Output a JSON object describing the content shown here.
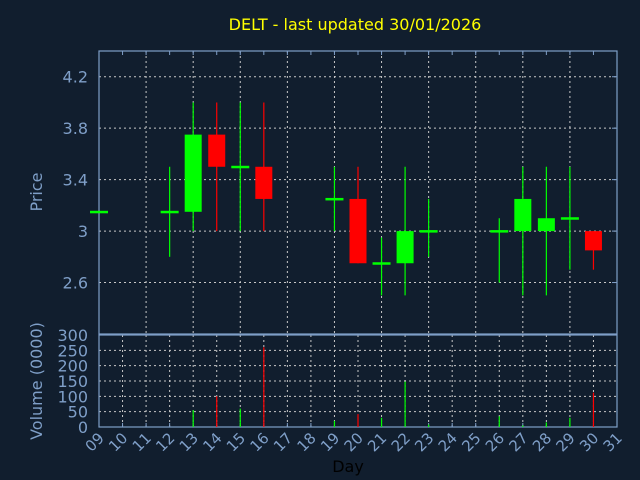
{
  "chart_data": [
    {
      "type": "candlestick",
      "title": "DELT - last updated 30/01/2026",
      "ylabel": "Price",
      "ylim": [
        2.2,
        4.4
      ],
      "yticks": [
        "2.6",
        "3",
        "3.4",
        "3.8",
        "4.2"
      ],
      "grid": true,
      "colors": {
        "up": "#00ff00",
        "down": "#ff0000",
        "title": "#ffff00",
        "axis": "#7f9fc8",
        "grid": "#c8c8c8",
        "background": "#111e2e"
      },
      "candles": [
        {
          "day": "09",
          "open": 3.15,
          "high": 3.15,
          "low": 3.15,
          "close": 3.15
        },
        {
          "day": "12",
          "open": 3.15,
          "high": 3.5,
          "low": 2.8,
          "close": 3.15
        },
        {
          "day": "13",
          "open": 3.15,
          "high": 4.0,
          "low": 3.0,
          "close": 3.75
        },
        {
          "day": "14",
          "open": 3.75,
          "high": 4.0,
          "low": 3.0,
          "close": 3.5
        },
        {
          "day": "15",
          "open": 3.5,
          "high": 4.0,
          "low": 3.0,
          "close": 3.5
        },
        {
          "day": "16",
          "open": 3.5,
          "high": 4.0,
          "low": 3.0,
          "close": 3.25
        },
        {
          "day": "19",
          "open": 3.25,
          "high": 3.5,
          "low": 3.0,
          "close": 3.25
        },
        {
          "day": "20",
          "open": 3.25,
          "high": 3.5,
          "low": 2.75,
          "close": 2.75
        },
        {
          "day": "21",
          "open": 2.75,
          "high": 2.95,
          "low": 2.5,
          "close": 2.75
        },
        {
          "day": "22",
          "open": 2.75,
          "high": 3.5,
          "low": 2.5,
          "close": 3.0
        },
        {
          "day": "23",
          "open": 3.0,
          "high": 3.25,
          "low": 2.8,
          "close": 3.0
        },
        {
          "day": "26",
          "open": 3.0,
          "high": 3.1,
          "low": 2.6,
          "close": 3.0
        },
        {
          "day": "27",
          "open": 3.0,
          "high": 3.5,
          "low": 2.5,
          "close": 3.25
        },
        {
          "day": "28",
          "open": 3.0,
          "high": 3.5,
          "low": 2.5,
          "close": 3.1
        },
        {
          "day": "29",
          "open": 3.1,
          "high": 3.5,
          "low": 2.7,
          "close": 3.1
        },
        {
          "day": "30",
          "open": 3.0,
          "high": 3.0,
          "low": 2.7,
          "close": 2.85
        }
      ]
    },
    {
      "type": "bar",
      "ylabel": "Volume (0000)",
      "xlabel": "Day",
      "ylim": [
        0,
        300
      ],
      "yticks": [
        "0",
        "50",
        "100",
        "150",
        "200",
        "250",
        "300"
      ],
      "categories": [
        "09",
        "10",
        "11",
        "12",
        "13",
        "14",
        "15",
        "16",
        "17",
        "18",
        "19",
        "20",
        "21",
        "22",
        "23",
        "24",
        "25",
        "26",
        "27",
        "28",
        "29",
        "30",
        "31"
      ],
      "bars": [
        {
          "day": "13",
          "value": 55,
          "direction": "up"
        },
        {
          "day": "14",
          "value": 100,
          "direction": "down"
        },
        {
          "day": "15",
          "value": 60,
          "direction": "up"
        },
        {
          "day": "16",
          "value": 260,
          "direction": "down"
        },
        {
          "day": "19",
          "value": 20,
          "direction": "up"
        },
        {
          "day": "20",
          "value": 42,
          "direction": "down"
        },
        {
          "day": "21",
          "value": 30,
          "direction": "up"
        },
        {
          "day": "22",
          "value": 148,
          "direction": "up"
        },
        {
          "day": "23",
          "value": 8,
          "direction": "up"
        },
        {
          "day": "26",
          "value": 35,
          "direction": "up"
        },
        {
          "day": "27",
          "value": 5,
          "direction": "up"
        },
        {
          "day": "28",
          "value": 15,
          "direction": "up"
        },
        {
          "day": "29",
          "value": 30,
          "direction": "up"
        },
        {
          "day": "30",
          "value": 112,
          "direction": "down"
        }
      ]
    }
  ]
}
